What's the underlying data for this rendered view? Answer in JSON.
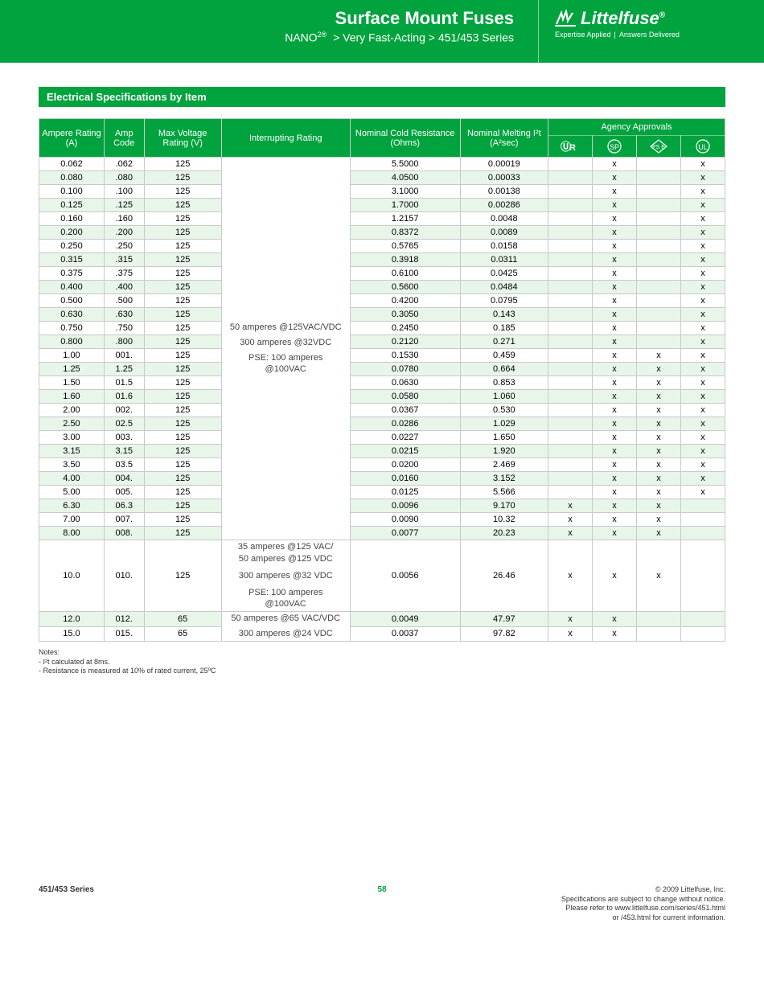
{
  "header": {
    "title": "Surface Mount Fuses",
    "subtitle_html": "NANO<sup>2®</sup>  > Very Fast-Acting > 451/453 Series",
    "logo_text": "Littelfuse",
    "tagline_left": "Expertise Applied",
    "tagline_right": "Answers Delivered"
  },
  "section_title": "Electrical Specifications by Item",
  "colors": {
    "brand_green": "#00a33e",
    "row_alt": "#e7f6e9",
    "border": "#c9c9c9"
  },
  "table": {
    "columns": {
      "ampere": "Ampere Rating (A)",
      "amp_code": "Amp Code",
      "max_voltage": "Max Voltage Rating (V)",
      "interrupting": "Interrupting Rating",
      "resistance": "Nominal Cold Resistance (Ohms)",
      "melting": "Nominal Melting I²t (A²sec)",
      "agency_header": "Agency Approvals",
      "agency_icons": [
        "UR",
        "CSA",
        "PSE",
        "UL"
      ]
    },
    "interrupting_group1": "50 amperes @125VAC/VDC\n300 amperes @32VDC\nPSE: 100 amperes @100VAC",
    "interrupting_group2": "35 amperes @125 VAC/\n50 amperes @125 VDC\n300 amperes @32 VDC\nPSE: 100 amperes @100VAC",
    "interrupting_group3": "50 amperes @65 VAC/VDC\n300 amperes @24 VDC",
    "rows": [
      {
        "a": "0.062",
        "c": ".062",
        "v": "125",
        "r": "5.5000",
        "m": "0.00019",
        "ur": "",
        "csa": "x",
        "pse": "",
        "ul": "x"
      },
      {
        "a": "0.080",
        "c": ".080",
        "v": "125",
        "r": "4.0500",
        "m": "0.00033",
        "ur": "",
        "csa": "x",
        "pse": "",
        "ul": "x"
      },
      {
        "a": "0.100",
        "c": ".100",
        "v": "125",
        "r": "3.1000",
        "m": "0.00138",
        "ur": "",
        "csa": "x",
        "pse": "",
        "ul": "x"
      },
      {
        "a": "0.125",
        "c": ".125",
        "v": "125",
        "r": "1.7000",
        "m": "0.00286",
        "ur": "",
        "csa": "x",
        "pse": "",
        "ul": "x"
      },
      {
        "a": "0.160",
        "c": ".160",
        "v": "125",
        "r": "1.2157",
        "m": "0.0048",
        "ur": "",
        "csa": "x",
        "pse": "",
        "ul": "x"
      },
      {
        "a": "0.200",
        "c": ".200",
        "v": "125",
        "r": "0.8372",
        "m": "0.0089",
        "ur": "",
        "csa": "x",
        "pse": "",
        "ul": "x"
      },
      {
        "a": "0.250",
        "c": ".250",
        "v": "125",
        "r": "0.5765",
        "m": "0.0158",
        "ur": "",
        "csa": "x",
        "pse": "",
        "ul": "x"
      },
      {
        "a": "0.315",
        "c": ".315",
        "v": "125",
        "r": "0.3918",
        "m": "0.0311",
        "ur": "",
        "csa": "x",
        "pse": "",
        "ul": "x"
      },
      {
        "a": "0.375",
        "c": ".375",
        "v": "125",
        "r": "0.6100",
        "m": "0.0425",
        "ur": "",
        "csa": "x",
        "pse": "",
        "ul": "x"
      },
      {
        "a": "0.400",
        "c": ".400",
        "v": "125",
        "r": "0.5600",
        "m": "0.0484",
        "ur": "",
        "csa": "x",
        "pse": "",
        "ul": "x"
      },
      {
        "a": "0.500",
        "c": ".500",
        "v": "125",
        "r": "0.4200",
        "m": "0.0795",
        "ur": "",
        "csa": "x",
        "pse": "",
        "ul": "x"
      },
      {
        "a": "0.630",
        "c": ".630",
        "v": "125",
        "r": "0.3050",
        "m": "0.143",
        "ur": "",
        "csa": "x",
        "pse": "",
        "ul": "x"
      },
      {
        "a": "0.750",
        "c": ".750",
        "v": "125",
        "r": "0.2450",
        "m": "0.185",
        "ur": "",
        "csa": "x",
        "pse": "",
        "ul": "x"
      },
      {
        "a": "0.800",
        "c": ".800",
        "v": "125",
        "r": "0.2120",
        "m": "0.271",
        "ur": "",
        "csa": "x",
        "pse": "",
        "ul": "x"
      },
      {
        "a": "1.00",
        "c": "001.",
        "v": "125",
        "r": "0.1530",
        "m": "0.459",
        "ur": "",
        "csa": "x",
        "pse": "x",
        "ul": "x"
      },
      {
        "a": "1.25",
        "c": "1.25",
        "v": "125",
        "r": "0.0780",
        "m": "0.664",
        "ur": "",
        "csa": "x",
        "pse": "x",
        "ul": "x"
      },
      {
        "a": "1.50",
        "c": "01.5",
        "v": "125",
        "r": "0.0630",
        "m": "0.853",
        "ur": "",
        "csa": "x",
        "pse": "x",
        "ul": "x"
      },
      {
        "a": "1.60",
        "c": "01.6",
        "v": "125",
        "r": "0.0580",
        "m": "1.060",
        "ur": "",
        "csa": "x",
        "pse": "x",
        "ul": "x"
      },
      {
        "a": "2.00",
        "c": "002.",
        "v": "125",
        "r": "0.0367",
        "m": "0.530",
        "ur": "",
        "csa": "x",
        "pse": "x",
        "ul": "x"
      },
      {
        "a": "2.50",
        "c": "02.5",
        "v": "125",
        "r": "0.0286",
        "m": "1.029",
        "ur": "",
        "csa": "x",
        "pse": "x",
        "ul": "x"
      },
      {
        "a": "3.00",
        "c": "003.",
        "v": "125",
        "r": "0.0227",
        "m": "1.650",
        "ur": "",
        "csa": "x",
        "pse": "x",
        "ul": "x"
      },
      {
        "a": "3.15",
        "c": "3.15",
        "v": "125",
        "r": "0.0215",
        "m": "1.920",
        "ur": "",
        "csa": "x",
        "pse": "x",
        "ul": "x"
      },
      {
        "a": "3.50",
        "c": "03.5",
        "v": "125",
        "r": "0.0200",
        "m": "2.469",
        "ur": "",
        "csa": "x",
        "pse": "x",
        "ul": "x"
      },
      {
        "a": "4.00",
        "c": "004.",
        "v": "125",
        "r": "0.0160",
        "m": "3.152",
        "ur": "",
        "csa": "x",
        "pse": "x",
        "ul": "x"
      },
      {
        "a": "5.00",
        "c": "005.",
        "v": "125",
        "r": "0.0125",
        "m": "5.566",
        "ur": "",
        "csa": "x",
        "pse": "x",
        "ul": "x"
      },
      {
        "a": "6.30",
        "c": "06.3",
        "v": "125",
        "r": "0.0096",
        "m": "9.170",
        "ur": "x",
        "csa": "x",
        "pse": "x",
        "ul": ""
      },
      {
        "a": "7.00",
        "c": "007.",
        "v": "125",
        "r": "0.0090",
        "m": "10.32",
        "ur": "x",
        "csa": "x",
        "pse": "x",
        "ul": ""
      },
      {
        "a": "8.00",
        "c": "008.",
        "v": "125",
        "r": "0.0077",
        "m": "20.23",
        "ur": "x",
        "csa": "x",
        "pse": "x",
        "ul": ""
      }
    ],
    "row_10": {
      "a": "10.0",
      "c": "010.",
      "v": "125",
      "r": "0.0056",
      "m": "26.46",
      "ur": "x",
      "csa": "x",
      "pse": "x",
      "ul": ""
    },
    "rows_g3": [
      {
        "a": "12.0",
        "c": "012.",
        "v": "65",
        "r": "0.0049",
        "m": "47.97",
        "ur": "x",
        "csa": "x",
        "pse": "",
        "ul": ""
      },
      {
        "a": "15.0",
        "c": "015.",
        "v": "65",
        "r": "0.0037",
        "m": "97.82",
        "ur": "x",
        "csa": "x",
        "pse": "",
        "ul": ""
      }
    ]
  },
  "notes": {
    "heading": "Notes:",
    "line1": "- I²t calculated at 8ms.",
    "line2": "- Resistance is measured at 10% of rated current, 25ºC"
  },
  "footer": {
    "series": "451/453 Series",
    "page": "58",
    "copyright": "© 2009 Littelfuse, Inc.",
    "line2": "Specifications are subject to change without notice.",
    "line3": "Please refer to www.littelfuse.com/series/451.html",
    "line4": "or /453.html for current information."
  }
}
